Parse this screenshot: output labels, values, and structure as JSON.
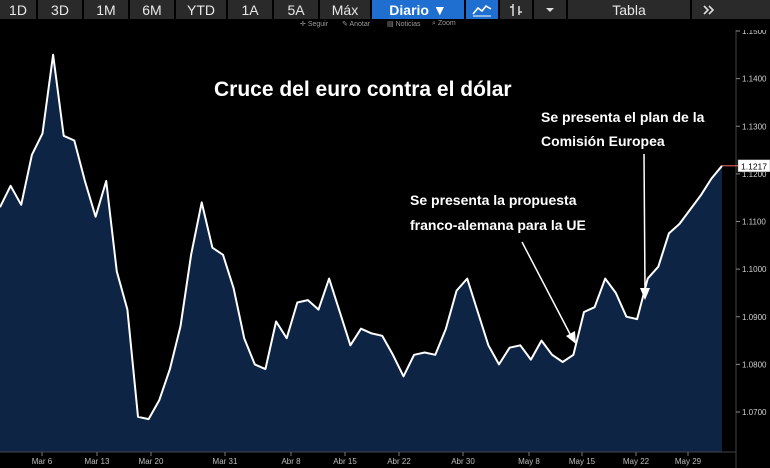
{
  "toolbar": {
    "ranges": [
      "1D",
      "3D",
      "1M",
      "6M",
      "YTD",
      "1A",
      "5A",
      "Máx"
    ],
    "period": "Diario ▼",
    "table": "Tabla",
    "icons": [
      "area-chart-icon",
      "bar-chart-icon",
      "dropdown-arrow-icon",
      "expand-icon"
    ]
  },
  "subbar": {
    "follow": "Seguir",
    "annotate": "Anotar",
    "news": "Noticias",
    "zoom": "Zoom"
  },
  "chart_data": {
    "type": "area",
    "title": "Cruce del euro contra el dólar",
    "x_tick_labels": [
      "Mar 6",
      "Mar 13",
      "Mar 20",
      "Mar 31",
      "Abr 8",
      "Abr 15",
      "Abr 22",
      "Abr 30",
      "May 8",
      "May 15",
      "May 22",
      "May 29"
    ],
    "ylim": [
      1.065,
      1.155
    ],
    "y_ticks": [
      "1.0700",
      "1.0800",
      "1.0900",
      "1.1000",
      "1.1100",
      "1.1200",
      "1.1300",
      "1.1400",
      "1.1500"
    ],
    "last_value_label": "1.1217",
    "values": [
      1.113,
      1.1175,
      1.1135,
      1.124,
      1.1285,
      1.145,
      1.128,
      1.127,
      1.1185,
      1.111,
      1.1185,
      1.0995,
      1.0915,
      1.069,
      1.0685,
      1.0725,
      1.079,
      1.088,
      1.103,
      1.114,
      1.1045,
      1.103,
      1.096,
      1.0855,
      1.08,
      1.079,
      1.089,
      1.0855,
      1.093,
      1.0935,
      1.0915,
      1.098,
      1.091,
      1.084,
      1.0875,
      1.0865,
      1.086,
      1.082,
      1.0775,
      1.082,
      1.0825,
      1.082,
      1.0875,
      1.0955,
      1.098,
      1.091,
      1.084,
      1.08,
      1.0835,
      1.084,
      1.081,
      1.085,
      1.082,
      1.0805,
      1.082,
      1.091,
      1.092,
      1.098,
      1.095,
      1.09,
      1.0895,
      1.098,
      1.1005,
      1.1075,
      1.1095,
      1.1125,
      1.1155,
      1.119,
      1.1217
    ],
    "annotations": [
      {
        "lines": [
          "Se presenta el plan de la",
          "Comisión Europea"
        ]
      },
      {
        "lines": [
          "Se presenta la propuesta",
          "franco-alemana para la UE"
        ]
      }
    ],
    "colors": {
      "fill": "#0e2444",
      "line": "#ffffff",
      "last_value": "#ff6a6a",
      "grid": "#333333"
    }
  }
}
